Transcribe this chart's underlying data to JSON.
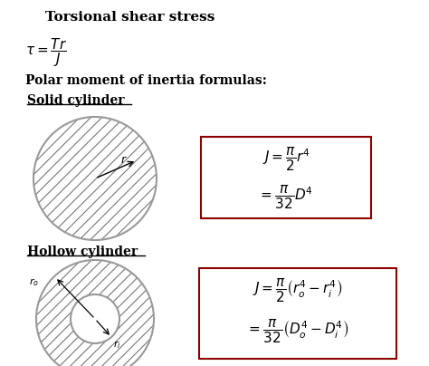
{
  "title": "Torsional shear stress",
  "polar_moment_title": "Polar moment of inertia formulas:",
  "solid_cylinder_title": "Solid cylinder",
  "hollow_cylinder_title": "Hollow cylinder",
  "bg_color": "#ffffff",
  "text_color": "#000000",
  "box_color": "#8B0000",
  "hatch_color": "#777777",
  "circle_color": "#999999"
}
